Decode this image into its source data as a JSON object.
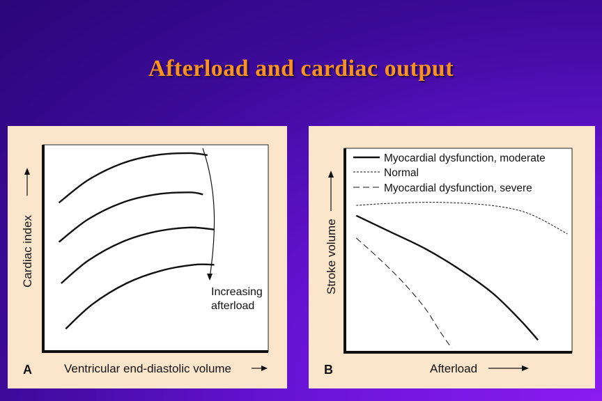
{
  "slide": {
    "title": "Afterload and cardiac output"
  },
  "colors": {
    "title": "#f7931e",
    "panel_bg": "#fbe6cc",
    "ink": "#111111"
  },
  "chart_data": [
    {
      "type": "line",
      "panel_letter": "A",
      "xlabel": "Ventricular end-diastolic volume",
      "ylabel": "Cardiac index",
      "annotation": {
        "line1": "Increasing",
        "line2": "afterload"
      },
      "grid": false,
      "xlim": [
        0,
        100
      ],
      "ylim": [
        0,
        100
      ],
      "series": [
        {
          "style": "solid",
          "x": [
            7,
            20,
            35,
            50,
            65,
            73
          ],
          "y": [
            72,
            83,
            91,
            95,
            96,
            95
          ]
        },
        {
          "style": "solid",
          "x": [
            7,
            20,
            35,
            50,
            65,
            71
          ],
          "y": [
            53,
            64,
            72,
            76,
            77,
            76
          ]
        },
        {
          "style": "solid",
          "x": [
            8,
            20,
            35,
            50,
            65,
            76
          ],
          "y": [
            33,
            44,
            53,
            58,
            60,
            59
          ]
        },
        {
          "style": "solid",
          "x": [
            10,
            22,
            37,
            52,
            67,
            76
          ],
          "y": [
            11,
            23,
            33,
            39,
            42,
            42
          ]
        }
      ]
    },
    {
      "type": "line",
      "panel_letter": "B",
      "xlabel": "Afterload",
      "ylabel": "Stroke volume",
      "legend_position": "top-left",
      "grid": false,
      "xlim": [
        0,
        100
      ],
      "ylim": [
        0,
        100
      ],
      "series": [
        {
          "name": "Myocardial dysfunction, moderate",
          "style": "solid",
          "x": [
            5,
            20,
            35,
            50,
            65,
            77,
            85
          ],
          "y": [
            67,
            59,
            51,
            41,
            29,
            16,
            6
          ]
        },
        {
          "name": "Normal",
          "style": "dotted",
          "x": [
            5,
            20,
            40,
            60,
            75,
            85,
            98
          ],
          "y": [
            72,
            73,
            73.5,
            72.5,
            70,
            66,
            58
          ]
        },
        {
          "name": "Myocardial dysfunction, severe",
          "style": "dashed",
          "x": [
            5,
            15,
            25,
            35,
            42,
            47
          ],
          "y": [
            56,
            46,
            35,
            22,
            10,
            2
          ]
        }
      ]
    }
  ]
}
